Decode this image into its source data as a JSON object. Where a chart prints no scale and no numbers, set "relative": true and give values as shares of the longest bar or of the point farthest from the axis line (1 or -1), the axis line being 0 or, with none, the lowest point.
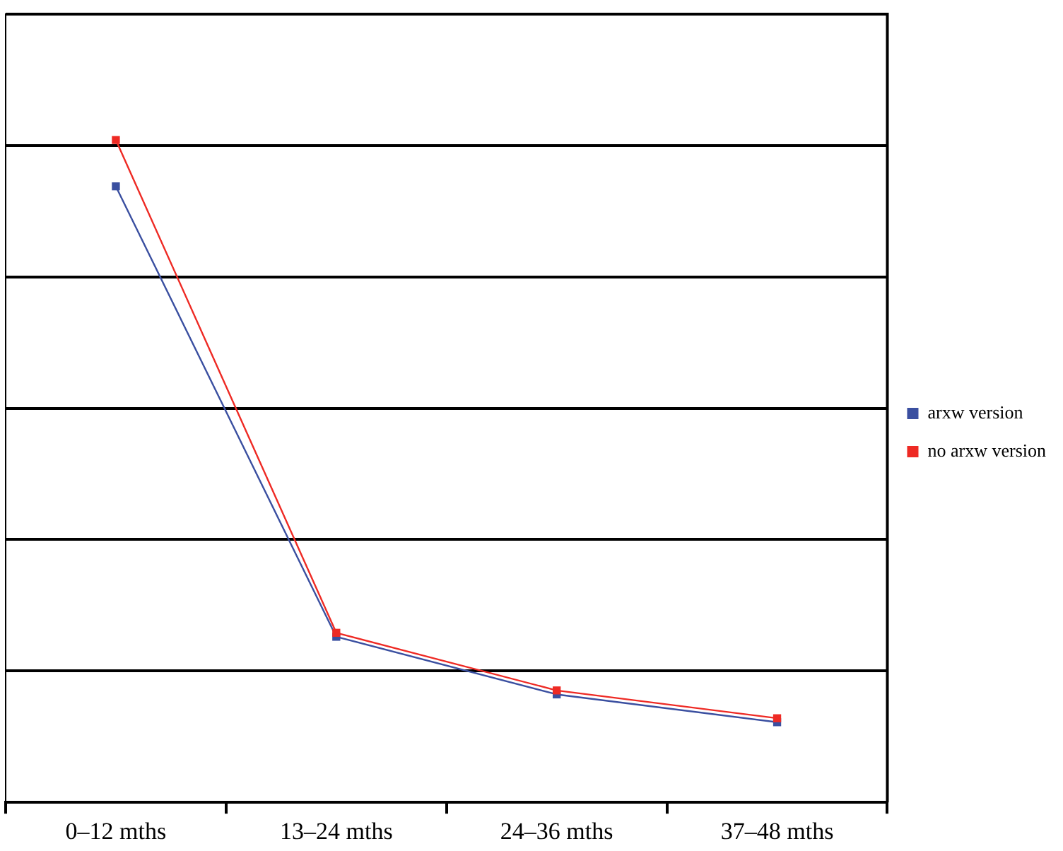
{
  "chart_data": {
    "type": "line",
    "relative": true,
    "categories": [
      "0–12 mths",
      "13–24 mths",
      "24–36 mths",
      "37–48 mths"
    ],
    "series": [
      {
        "name": "no arxw version",
        "color": "#ee2a24",
        "values": [
          1,
          0.256,
          0.169,
          0.127
        ]
      },
      {
        "name": "arxw version",
        "color": "#3a4fa0",
        "values": [
          0.93,
          0.25,
          0.163,
          0.121
        ]
      }
    ],
    "grid": "y",
    "legend": "right",
    "marker": "square",
    "line_style": "solid"
  }
}
